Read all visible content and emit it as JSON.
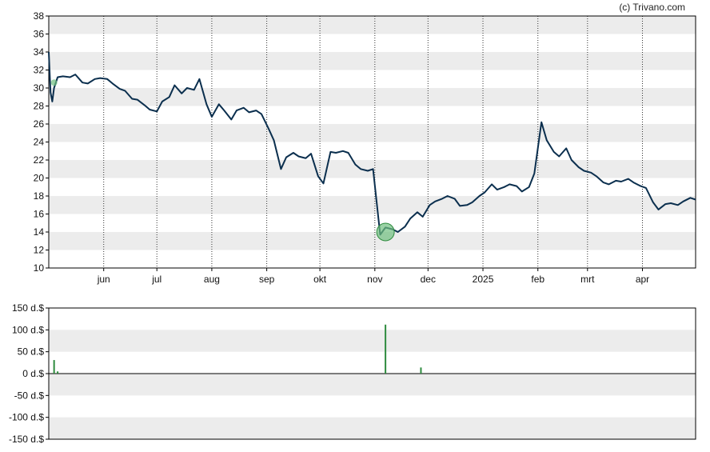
{
  "credit": "(c) Trivano.com",
  "colors": {
    "line": "#0b2f4e",
    "band": "#ececec",
    "volume": "#2e8b3e",
    "marker": "#6fbf7f",
    "grid": "#333333"
  },
  "chart_data": [
    {
      "type": "line",
      "title": "",
      "ylim": [
        10,
        38
      ],
      "y_ticks": [
        10,
        12,
        14,
        16,
        18,
        20,
        22,
        24,
        26,
        28,
        30,
        32,
        34,
        36,
        38
      ],
      "y_tick_labels": [
        "10",
        "12",
        "14",
        "16",
        "18",
        "20",
        "22",
        "24",
        "26",
        "28",
        "30",
        "32",
        "34",
        "36",
        "38"
      ],
      "x_ticks": [
        {
          "label": "jun",
          "date": "2024-06-01"
        },
        {
          "label": "jul",
          "date": "2024-07-01"
        },
        {
          "label": "aug",
          "date": "2024-08-01"
        },
        {
          "label": "sep",
          "date": "2024-09-01"
        },
        {
          "label": "okt",
          "date": "2024-10-01"
        },
        {
          "label": "nov",
          "date": "2024-11-01"
        },
        {
          "label": "dec",
          "date": "2024-12-01"
        },
        {
          "label": "2025",
          "date": "2025-01-01"
        },
        {
          "label": "feb",
          "date": "2025-02-01"
        },
        {
          "label": "mrt",
          "date": "2025-03-01"
        },
        {
          "label": "apr",
          "date": "2025-04-01"
        }
      ],
      "x_range": [
        "2024-05-01",
        "2025-05-01"
      ],
      "series": [
        {
          "x": [
            "2024-05-01",
            "2024-05-02",
            "2024-05-03",
            "2024-05-04",
            "2024-05-06",
            "2024-05-09",
            "2024-05-13",
            "2024-05-16",
            "2024-05-20",
            "2024-05-23",
            "2024-05-27",
            "2024-05-30",
            "2024-06-03",
            "2024-06-06",
            "2024-06-10",
            "2024-06-13",
            "2024-06-17",
            "2024-06-20",
            "2024-06-24",
            "2024-06-27",
            "2024-07-01",
            "2024-07-04",
            "2024-07-08",
            "2024-07-11",
            "2024-07-15",
            "2024-07-18",
            "2024-07-22",
            "2024-07-25",
            "2024-07-29",
            "2024-08-01",
            "2024-08-05",
            "2024-08-08",
            "2024-08-12",
            "2024-08-15",
            "2024-08-19",
            "2024-08-22",
            "2024-08-26",
            "2024-08-29",
            "2024-09-02",
            "2024-09-05",
            "2024-09-09",
            "2024-09-12",
            "2024-09-16",
            "2024-09-19",
            "2024-09-23",
            "2024-09-26",
            "2024-09-30",
            "2024-10-03",
            "2024-10-07",
            "2024-10-10",
            "2024-10-14",
            "2024-10-17",
            "2024-10-21",
            "2024-10-24",
            "2024-10-28",
            "2024-10-31",
            "2024-11-04",
            "2024-11-07",
            "2024-11-11",
            "2024-11-14",
            "2024-11-18",
            "2024-11-21",
            "2024-11-25",
            "2024-11-28",
            "2024-12-02",
            "2024-12-05",
            "2024-12-09",
            "2024-12-12",
            "2024-12-16",
            "2024-12-19",
            "2024-12-23",
            "2024-12-26",
            "2024-12-30",
            "2025-01-02",
            "2025-01-06",
            "2025-01-09",
            "2025-01-13",
            "2025-01-16",
            "2025-01-20",
            "2025-01-23",
            "2025-01-27",
            "2025-01-30",
            "2025-02-03",
            "2025-02-06",
            "2025-02-10",
            "2025-02-13",
            "2025-02-17",
            "2025-02-20",
            "2025-02-24",
            "2025-02-27",
            "2025-03-03",
            "2025-03-06",
            "2025-03-10",
            "2025-03-13",
            "2025-03-17",
            "2025-03-20",
            "2025-03-24",
            "2025-03-27",
            "2025-03-31",
            "2025-04-03",
            "2025-04-07",
            "2025-04-10",
            "2025-04-14",
            "2025-04-17",
            "2025-04-21",
            "2025-04-24",
            "2025-04-28",
            "2025-05-01"
          ],
          "values": [
            34.0,
            29.5,
            28.5,
            30.0,
            31.2,
            31.3,
            31.2,
            31.5,
            30.6,
            30.5,
            31.0,
            31.1,
            31.0,
            30.5,
            29.9,
            29.7,
            28.8,
            28.7,
            28.1,
            27.6,
            27.4,
            28.5,
            29.0,
            30.3,
            29.4,
            30.0,
            29.8,
            31.0,
            28.2,
            26.8,
            28.2,
            27.5,
            26.5,
            27.5,
            27.8,
            27.3,
            27.5,
            27.1,
            25.5,
            24.2,
            21.0,
            22.3,
            22.8,
            22.4,
            22.2,
            22.7,
            20.2,
            19.4,
            22.9,
            22.8,
            23.0,
            22.8,
            21.5,
            21.0,
            20.8,
            21.0,
            13.7,
            14.5,
            14.3,
            14.0,
            14.6,
            15.5,
            16.2,
            15.7,
            17.0,
            17.4,
            17.7,
            18.0,
            17.7,
            16.9,
            17.0,
            17.3,
            18.0,
            18.4,
            19.3,
            18.7,
            19.0,
            19.3,
            19.1,
            18.5,
            19.0,
            20.5,
            26.2,
            24.2,
            22.9,
            22.4,
            23.3,
            22.0,
            21.2,
            20.8,
            20.6,
            20.2,
            19.5,
            19.3,
            19.7,
            19.6,
            19.9,
            19.5,
            19.1,
            18.9,
            17.3,
            16.5,
            17.1,
            17.2,
            17.0,
            17.4,
            17.8,
            17.6
          ]
        }
      ],
      "markers": [
        {
          "x": "2024-05-04",
          "y": 30.6
        },
        {
          "x": "2024-11-07",
          "y": 14.0
        }
      ]
    },
    {
      "type": "bar",
      "title": "",
      "ylim": [
        -150,
        150
      ],
      "y_ticks": [
        150,
        100,
        50,
        0,
        -50,
        -100,
        -150
      ],
      "y_tick_labels": [
        "150 d.$",
        "100 d.$",
        "50 d.$",
        "0 d.$",
        "-50 d.$",
        "-100 d.$",
        "-150 d.$"
      ],
      "x_range": [
        "2024-05-01",
        "2025-05-01"
      ],
      "bars": [
        {
          "x": "2024-05-04",
          "value": 31
        },
        {
          "x": "2024-05-06",
          "value": 5
        },
        {
          "x": "2024-11-07",
          "value": 112
        },
        {
          "x": "2024-11-27",
          "value": 14
        }
      ]
    }
  ]
}
